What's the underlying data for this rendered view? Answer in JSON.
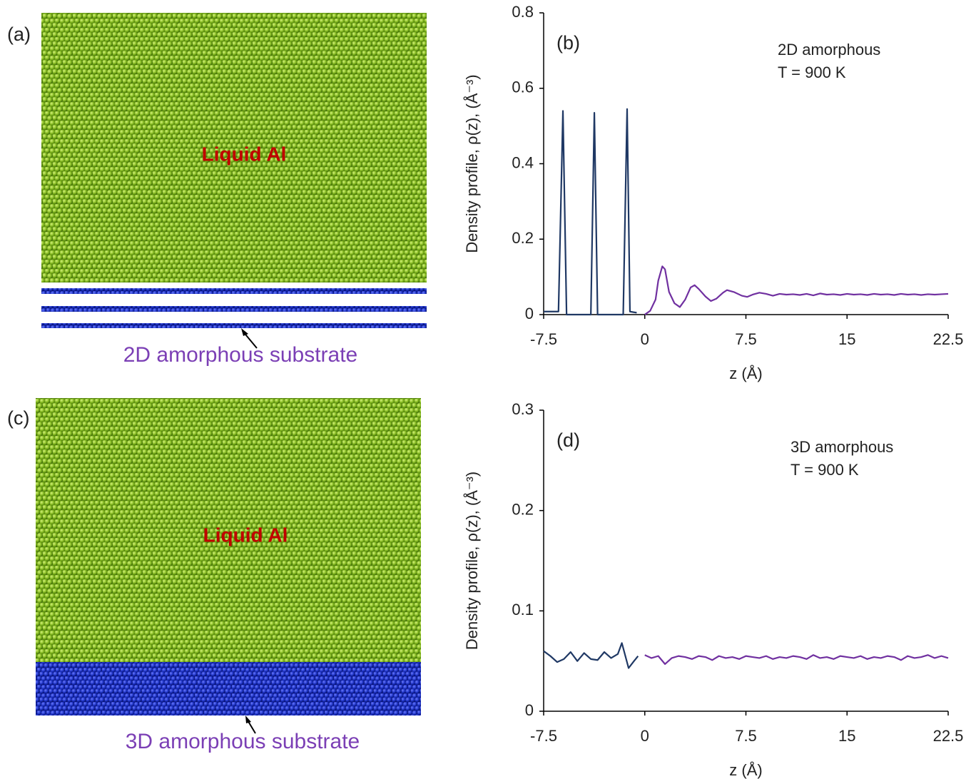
{
  "images": [
    {
      "panel": "(a)",
      "label": "Liquid Al",
      "caption": "2D amorphous substrate"
    },
    {
      "panel": "(c)",
      "label": "Liquid Al",
      "caption": "3D amorphous substrate"
    }
  ],
  "chart_data": [
    {
      "type": "line",
      "panel": "(b)",
      "annotation": [
        "2D amorphous",
        "T = 900 K"
      ],
      "xlabel": "z (Å)",
      "ylabel": "Density profile, ρ(z), (Å⁻³)",
      "xlim": [
        -7.5,
        22.5
      ],
      "xticks": [
        -7.5,
        0,
        7.5,
        15,
        22.5
      ],
      "ylim": [
        0,
        0.8
      ],
      "yticks": [
        0,
        0.2,
        0.4,
        0.6,
        0.8
      ],
      "series": [
        {
          "color": "#1f3864",
          "x": [
            -7.5,
            -6.4,
            -6.07,
            -5.8,
            -4.0,
            -3.74,
            -3.5,
            -1.6,
            -1.31,
            -1.1,
            -0.6
          ],
          "values": [
            0.008,
            0.008,
            0.54,
            0,
            0,
            0.535,
            0,
            0,
            0.545,
            0.008,
            0.005
          ]
        },
        {
          "color": "#7030a0",
          "x": [
            0,
            0.4,
            0.8,
            1.0,
            1.3,
            1.5,
            1.8,
            2.2,
            2.6,
            3.0,
            3.4,
            3.7,
            4.0,
            4.5,
            4.9,
            5.3,
            5.8,
            6.1,
            6.6,
            7.2,
            7.6,
            8.0,
            8.5,
            9.0,
            9.5,
            10,
            10.5,
            11,
            11.5,
            12,
            12.5,
            13,
            13.5,
            14,
            14.5,
            15,
            15.5,
            16,
            16.5,
            17,
            17.5,
            18,
            18.5,
            19,
            19.5,
            20,
            20.5,
            21,
            21.5,
            22,
            22.5
          ],
          "values": [
            0,
            0.01,
            0.04,
            0.09,
            0.128,
            0.12,
            0.06,
            0.03,
            0.02,
            0.04,
            0.072,
            0.078,
            0.068,
            0.048,
            0.036,
            0.042,
            0.058,
            0.065,
            0.06,
            0.05,
            0.047,
            0.053,
            0.058,
            0.055,
            0.05,
            0.055,
            0.053,
            0.054,
            0.052,
            0.055,
            0.051,
            0.056,
            0.053,
            0.054,
            0.052,
            0.055,
            0.053,
            0.054,
            0.052,
            0.055,
            0.053,
            0.054,
            0.052,
            0.055,
            0.053,
            0.054,
            0.052,
            0.054,
            0.053,
            0.054,
            0.055
          ]
        }
      ]
    },
    {
      "type": "line",
      "panel": "(d)",
      "annotation": [
        "3D amorphous",
        "T = 900 K"
      ],
      "xlabel": "z (Å)",
      "ylabel": "Density profile, ρ(z), (Å⁻³)",
      "xlim": [
        -7.5,
        22.5
      ],
      "xticks": [
        -7.5,
        0,
        7.5,
        15,
        22.5
      ],
      "ylim": [
        0,
        0.3
      ],
      "yticks": [
        0,
        0.1,
        0.2,
        0.3
      ],
      "series": [
        {
          "color": "#1f3864",
          "x": [
            -7.5,
            -7,
            -6.5,
            -6,
            -5.5,
            -5,
            -4.5,
            -4,
            -3.5,
            -3,
            -2.5,
            -2,
            -1.7,
            -1.2,
            -0.8,
            -0.5
          ],
          "values": [
            0.06,
            0.055,
            0.049,
            0.052,
            0.059,
            0.05,
            0.058,
            0.052,
            0.051,
            0.059,
            0.053,
            0.057,
            0.068,
            0.043,
            0.05,
            0.055
          ]
        },
        {
          "color": "#7030a0",
          "x": [
            0,
            0.5,
            1,
            1.5,
            2,
            2.5,
            3,
            3.5,
            4,
            4.5,
            5,
            5.5,
            6,
            6.5,
            7,
            7.5,
            8,
            8.5,
            9,
            9.5,
            10,
            10.5,
            11,
            11.5,
            12,
            12.5,
            13,
            13.5,
            14,
            14.5,
            15,
            15.5,
            16,
            16.5,
            17,
            17.5,
            18,
            18.5,
            19,
            19.5,
            20,
            20.5,
            21,
            21.5,
            22,
            22.5
          ],
          "values": [
            0.056,
            0.053,
            0.055,
            0.047,
            0.053,
            0.055,
            0.054,
            0.052,
            0.055,
            0.054,
            0.051,
            0.055,
            0.053,
            0.054,
            0.052,
            0.055,
            0.054,
            0.053,
            0.055,
            0.052,
            0.054,
            0.053,
            0.055,
            0.054,
            0.052,
            0.056,
            0.053,
            0.054,
            0.052,
            0.055,
            0.054,
            0.053,
            0.055,
            0.052,
            0.054,
            0.053,
            0.055,
            0.054,
            0.051,
            0.055,
            0.053,
            0.054,
            0.056,
            0.053,
            0.055,
            0.053
          ]
        }
      ]
    }
  ]
}
